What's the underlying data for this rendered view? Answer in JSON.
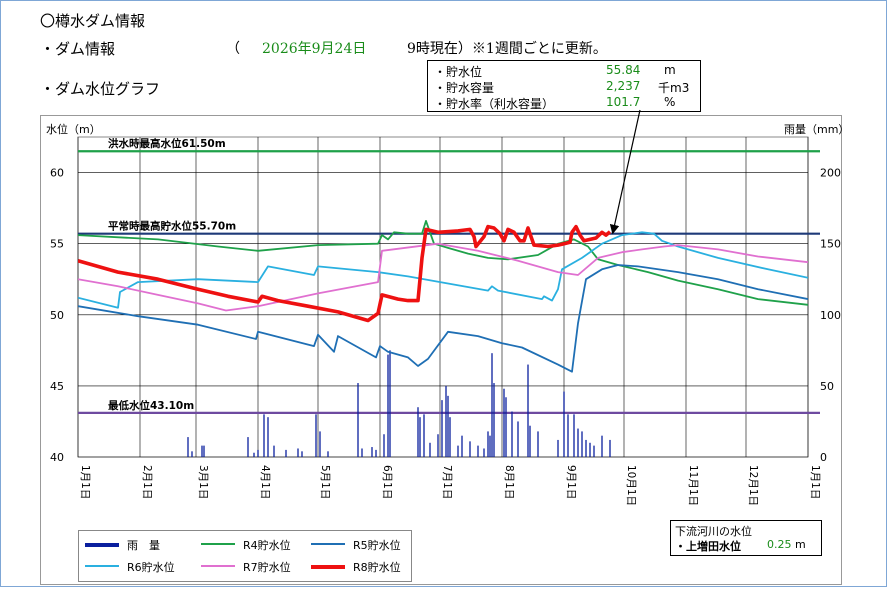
{
  "header": {
    "title": "〇樽水ダム情報",
    "dam_info_label": "・ダム情報",
    "paren_open": "（",
    "date": "2026年9月24日",
    "time_note": "9時現在）※1週間ごとに更新。",
    "graph_label": "・ダム水位グラフ"
  },
  "current": {
    "water_level": {
      "label": "・貯水位",
      "value": "55.84",
      "unit": "m"
    },
    "storage": {
      "label": "・貯水容量",
      "value": "2,237",
      "unit": "千m3"
    },
    "rate": {
      "label": "・貯水率（利水容量）",
      "value": "101.7",
      "unit": "%"
    }
  },
  "river": {
    "title": "下流河川の水位",
    "label": "・上増田水位",
    "value": "0.25",
    "unit": "m"
  },
  "colors": {
    "rain": "#0a1f9e",
    "r4": "#1fa14a",
    "r5": "#1f6fb4",
    "r6": "#2ab0e0",
    "r7": "#e070d0",
    "r8": "#ee1111",
    "flood": "#1fa14a",
    "normal": "#1e3a78",
    "min": "#6e4aa0"
  },
  "chart_data": {
    "type": "line",
    "ylabel": "水位（m）",
    "y2label": "雨量（mm）",
    "ylim": [
      40,
      62.5
    ],
    "y2lim": [
      0,
      225
    ],
    "yticks": [
      40,
      45,
      50,
      55,
      60
    ],
    "y2ticks": [
      0,
      50,
      100,
      150,
      200
    ],
    "xlim": [
      0,
      365
    ],
    "month_labels": [
      "1月1日",
      "2月1日",
      "3月1日",
      "4月1日",
      "5月1日",
      "6月1日",
      "7月1日",
      "8月1日",
      "9月1日",
      "10月1日",
      "11月1日",
      "12月1日",
      "1月1日"
    ],
    "month_days": [
      0,
      31,
      59,
      90,
      120,
      151,
      181,
      212,
      243,
      273,
      304,
      334,
      365
    ],
    "reference_lines": [
      {
        "name": "洪水時最高水位61.50m",
        "value": 61.5
      },
      {
        "name": "平常時最高貯水位55.70m",
        "value": 55.7
      },
      {
        "name": "最低水位43.10m",
        "value": 43.1
      }
    ],
    "series": [
      {
        "name": "R4貯水位",
        "key": "r4",
        "points": [
          [
            0,
            55.6
          ],
          [
            40,
            55.3
          ],
          [
            70,
            54.8
          ],
          [
            90,
            54.5
          ],
          [
            120,
            54.9
          ],
          [
            150,
            55.0
          ],
          [
            152,
            55.6
          ],
          [
            155,
            55.3
          ],
          [
            158,
            55.8
          ],
          [
            165,
            55.7
          ],
          [
            172,
            55.7
          ],
          [
            174,
            56.6
          ],
          [
            178,
            55.0
          ],
          [
            185,
            54.7
          ],
          [
            195,
            54.3
          ],
          [
            205,
            54.0
          ],
          [
            215,
            53.9
          ],
          [
            230,
            54.2
          ],
          [
            240,
            55.0
          ],
          [
            248,
            55.3
          ],
          [
            255,
            54.8
          ],
          [
            260,
            53.9
          ],
          [
            270,
            53.5
          ],
          [
            285,
            53.0
          ],
          [
            300,
            52.4
          ],
          [
            320,
            51.8
          ],
          [
            340,
            51.1
          ],
          [
            365,
            50.7
          ]
        ]
      },
      {
        "name": "R5貯水位",
        "key": "r5",
        "points": [
          [
            0,
            50.6
          ],
          [
            30,
            49.9
          ],
          [
            60,
            49.3
          ],
          [
            89,
            48.3
          ],
          [
            90,
            48.8
          ],
          [
            118,
            47.8
          ],
          [
            120,
            48.6
          ],
          [
            128,
            47.4
          ],
          [
            130,
            48.5
          ],
          [
            149,
            47.0
          ],
          [
            151,
            47.8
          ],
          [
            155,
            47.4
          ],
          [
            165,
            47.0
          ],
          [
            170,
            46.4
          ],
          [
            175,
            46.9
          ],
          [
            185,
            48.8
          ],
          [
            200,
            48.5
          ],
          [
            212,
            48.0
          ],
          [
            222,
            47.7
          ],
          [
            240,
            46.5
          ],
          [
            247,
            46.0
          ],
          [
            250,
            49.4
          ],
          [
            254,
            52.5
          ],
          [
            262,
            53.2
          ],
          [
            270,
            53.5
          ],
          [
            280,
            53.4
          ],
          [
            300,
            53.0
          ],
          [
            320,
            52.5
          ],
          [
            340,
            51.8
          ],
          [
            365,
            51.1
          ]
        ]
      },
      {
        "name": "R6貯水位",
        "key": "r6",
        "points": [
          [
            0,
            51.2
          ],
          [
            20,
            50.5
          ],
          [
            21,
            51.6
          ],
          [
            30,
            52.3
          ],
          [
            60,
            52.5
          ],
          [
            90,
            52.3
          ],
          [
            95,
            53.4
          ],
          [
            118,
            52.8
          ],
          [
            120,
            53.4
          ],
          [
            150,
            53.0
          ],
          [
            165,
            52.7
          ],
          [
            185,
            52.2
          ],
          [
            205,
            51.7
          ],
          [
            207,
            52.0
          ],
          [
            210,
            51.7
          ],
          [
            232,
            51.1
          ],
          [
            233,
            51.3
          ],
          [
            237,
            51.0
          ],
          [
            240,
            51.8
          ],
          [
            242,
            53.2
          ],
          [
            252,
            54.0
          ],
          [
            262,
            55.0
          ],
          [
            272,
            55.6
          ],
          [
            282,
            55.8
          ],
          [
            288,
            55.7
          ],
          [
            292,
            55.2
          ],
          [
            300,
            54.8
          ],
          [
            320,
            54.0
          ],
          [
            345,
            53.2
          ],
          [
            365,
            52.6
          ]
        ]
      },
      {
        "name": "R7貯水位",
        "key": "r7",
        "points": [
          [
            0,
            52.5
          ],
          [
            20,
            52.0
          ],
          [
            40,
            51.4
          ],
          [
            60,
            50.8
          ],
          [
            74,
            50.3
          ],
          [
            90,
            50.6
          ],
          [
            120,
            51.5
          ],
          [
            150,
            52.3
          ],
          [
            152,
            54.5
          ],
          [
            180,
            55.0
          ],
          [
            200,
            54.5
          ],
          [
            220,
            53.8
          ],
          [
            240,
            53.0
          ],
          [
            250,
            52.8
          ],
          [
            260,
            54.0
          ],
          [
            272,
            54.4
          ],
          [
            282,
            54.6
          ],
          [
            293,
            54.8
          ],
          [
            300,
            54.9
          ],
          [
            320,
            54.6
          ],
          [
            340,
            54.1
          ],
          [
            365,
            53.7
          ]
        ]
      },
      {
        "name": "R8貯水位",
        "key": "r8",
        "points": [
          [
            0,
            53.8
          ],
          [
            20,
            53.0
          ],
          [
            40,
            52.5
          ],
          [
            60,
            51.8
          ],
          [
            75,
            51.3
          ],
          [
            90,
            50.9
          ],
          [
            92,
            51.3
          ],
          [
            100,
            51.0
          ],
          [
            115,
            50.6
          ],
          [
            130,
            50.2
          ],
          [
            140,
            49.8
          ],
          [
            145,
            49.6
          ],
          [
            150,
            50.1
          ],
          [
            152,
            51.4
          ],
          [
            160,
            51.1
          ],
          [
            165,
            51.0
          ],
          [
            170,
            51.0
          ],
          [
            172,
            54.0
          ],
          [
            174,
            56.0
          ],
          [
            180,
            55.8
          ],
          [
            190,
            55.9
          ],
          [
            196,
            56.0
          ],
          [
            198,
            55.5
          ],
          [
            199,
            54.8
          ],
          [
            203,
            55.5
          ],
          [
            205,
            56.2
          ],
          [
            208,
            56.1
          ],
          [
            211,
            55.7
          ],
          [
            213,
            55.2
          ],
          [
            215,
            56.0
          ],
          [
            218,
            55.8
          ],
          [
            221,
            55.2
          ],
          [
            223,
            55.2
          ],
          [
            225,
            56.1
          ],
          [
            228,
            54.9
          ],
          [
            235,
            54.8
          ],
          [
            240,
            54.9
          ],
          [
            243,
            55.0
          ],
          [
            246,
            55.1
          ],
          [
            247,
            55.8
          ],
          [
            249,
            56.2
          ],
          [
            251,
            55.6
          ],
          [
            253,
            55.2
          ],
          [
            256,
            55.3
          ],
          [
            259,
            55.4
          ],
          [
            262,
            55.8
          ],
          [
            264,
            55.6
          ],
          [
            266,
            55.84
          ]
        ]
      },
      {
        "name": "雨　量",
        "key": "rain",
        "type": "bar",
        "points": [
          [
            55,
            14
          ],
          [
            57,
            4
          ],
          [
            62,
            8
          ],
          [
            63,
            8
          ],
          [
            85,
            14
          ],
          [
            88,
            3
          ],
          [
            90,
            5
          ],
          [
            93,
            30
          ],
          [
            95,
            28
          ],
          [
            98,
            8
          ],
          [
            104,
            5
          ],
          [
            110,
            6
          ],
          [
            112,
            4
          ],
          [
            119,
            30
          ],
          [
            121,
            18
          ],
          [
            125,
            4
          ],
          [
            140,
            52
          ],
          [
            142,
            6
          ],
          [
            147,
            7
          ],
          [
            149,
            5
          ],
          [
            153,
            16
          ],
          [
            155,
            72
          ],
          [
            156,
            75
          ],
          [
            170,
            35
          ],
          [
            171,
            28
          ],
          [
            173,
            30
          ],
          [
            176,
            10
          ],
          [
            180,
            16
          ],
          [
            182,
            40
          ],
          [
            184,
            50
          ],
          [
            185,
            43
          ],
          [
            186,
            28
          ],
          [
            190,
            8
          ],
          [
            192,
            15
          ],
          [
            196,
            11
          ],
          [
            200,
            8
          ],
          [
            203,
            6
          ],
          [
            205,
            18
          ],
          [
            206,
            15
          ],
          [
            207,
            73
          ],
          [
            208,
            52
          ],
          [
            213,
            48
          ],
          [
            214,
            42
          ],
          [
            217,
            32
          ],
          [
            220,
            25
          ],
          [
            225,
            65
          ],
          [
            226,
            22
          ],
          [
            230,
            18
          ],
          [
            240,
            12
          ],
          [
            243,
            46
          ],
          [
            245,
            30
          ],
          [
            248,
            30
          ],
          [
            250,
            20
          ],
          [
            252,
            18
          ],
          [
            254,
            12
          ],
          [
            256,
            10
          ],
          [
            258,
            8
          ],
          [
            262,
            15
          ],
          [
            266,
            12
          ]
        ]
      }
    ]
  },
  "legend": {
    "items": [
      {
        "key": "rain",
        "label": "雨　量"
      },
      {
        "key": "r4",
        "label": "R4貯水位"
      },
      {
        "key": "r5",
        "label": "R5貯水位"
      },
      {
        "key": "r6",
        "label": "R6貯水位"
      },
      {
        "key": "r7",
        "label": "R7貯水位"
      },
      {
        "key": "r8",
        "label": "R8貯水位"
      }
    ]
  }
}
